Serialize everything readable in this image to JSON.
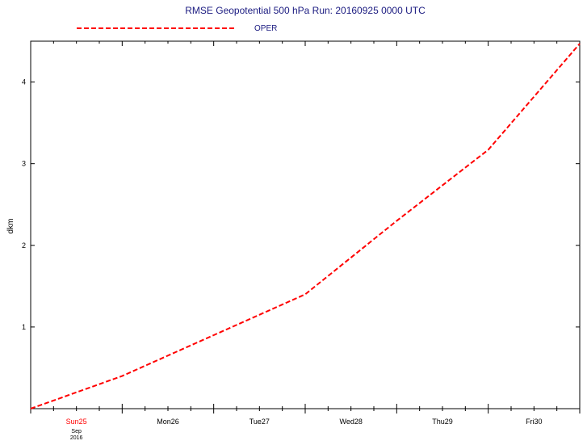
{
  "chart_data": {
    "type": "line",
    "title": "RMSE Geopotential 500 hPa Run: 20160925 0000 UTC",
    "ylabel": "dkm",
    "xlabel": "",
    "x_ticks": [
      {
        "label": "Sun25",
        "highlight": true
      },
      {
        "label": "Mon26",
        "highlight": false
      },
      {
        "label": "Tue27",
        "highlight": false
      },
      {
        "label": "Wed28",
        "highlight": false
      },
      {
        "label": "Thu29",
        "highlight": false
      },
      {
        "label": "Fri30",
        "highlight": false
      }
    ],
    "x_sub_labels": [
      "Sep",
      "2016"
    ],
    "x_range_days": [
      0,
      6
    ],
    "ylim": [
      0,
      4.5
    ],
    "y_ticks": [
      1,
      2,
      3,
      4
    ],
    "grid": false,
    "legend_position": "top-left",
    "series": [
      {
        "name": "OPER",
        "color": "#ff0000",
        "style": "dashed",
        "x_days": [
          0,
          1,
          2,
          3,
          4,
          5,
          6
        ],
        "values": [
          0,
          0.4,
          0.9,
          1.4,
          2.3,
          3.17,
          4.47
        ]
      }
    ],
    "colors": {
      "text": "#1a1a80",
      "axis": "#000000",
      "highlight": "#ff0000"
    }
  }
}
